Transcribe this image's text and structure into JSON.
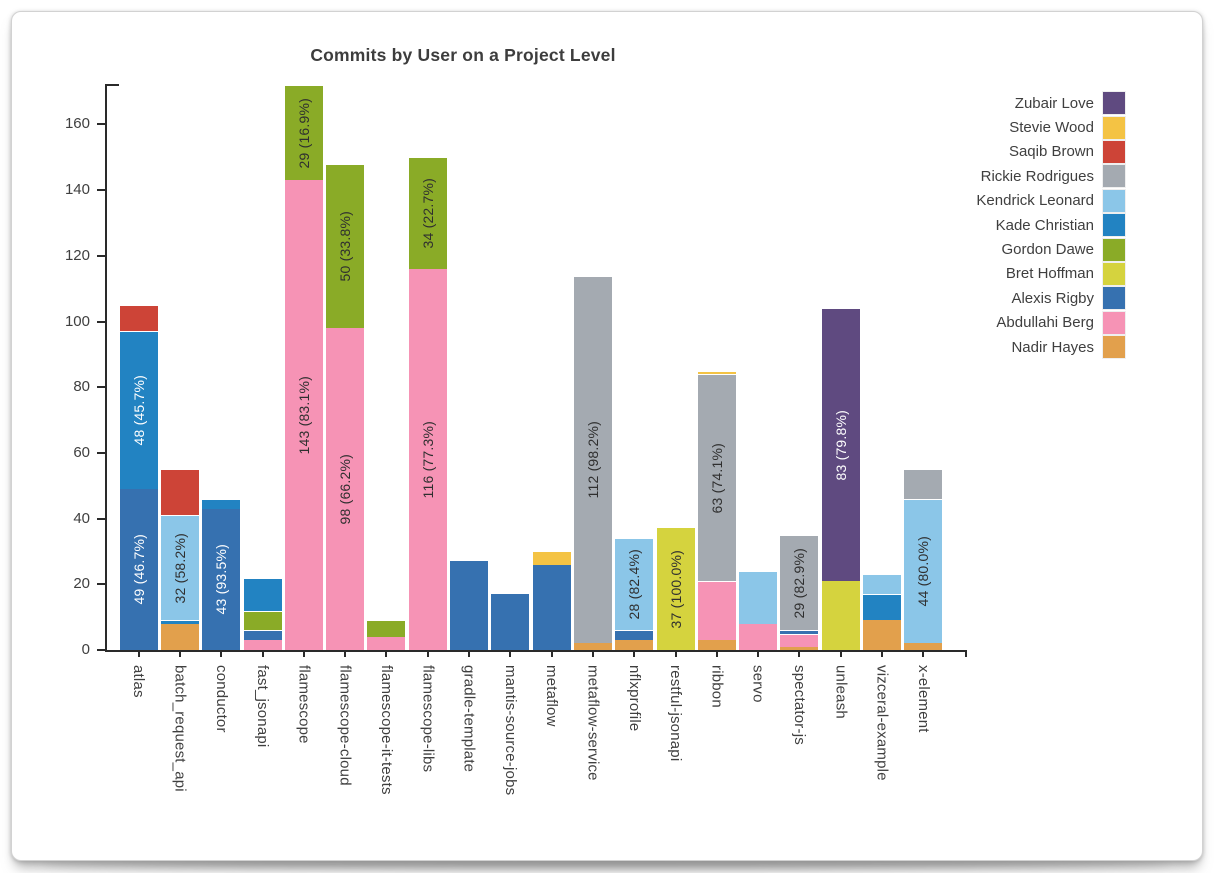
{
  "page": {
    "title": "Commits by User on a Project Level"
  },
  "chart_data": {
    "type": "bar",
    "stacked": true,
    "title": "Commits by User on a Project Level",
    "xlabel": "",
    "ylabel": "",
    "ylim": [
      0,
      172
    ],
    "yticks": [
      0,
      20,
      40,
      60,
      80,
      100,
      120,
      140,
      160
    ],
    "grid": false,
    "legend_position": "right",
    "users": [
      {
        "name": "Zubair Love",
        "color": "#5f4a80"
      },
      {
        "name": "Stevie Wood",
        "color": "#f4c344"
      },
      {
        "name": "Saqib Brown",
        "color": "#cd4437"
      },
      {
        "name": "Rickie Rodrigues",
        "color": "#a4aab1"
      },
      {
        "name": "Kendrick Leonard",
        "color": "#8bc6e8"
      },
      {
        "name": "Kade Christian",
        "color": "#2283c2"
      },
      {
        "name": "Gordon Dawe",
        "color": "#8aab27"
      },
      {
        "name": "Bret Hoffman",
        "color": "#d5d33e"
      },
      {
        "name": "Alexis Rigby",
        "color": "#3671b0"
      },
      {
        "name": "Abdullahi Berg",
        "color": "#f693b5"
      },
      {
        "name": "Nadir Hayes",
        "color": "#e2a04c"
      }
    ],
    "categories": [
      "atlas",
      "batch_request_api",
      "conductor",
      "fast_jsonapi",
      "flamescope",
      "flamescope-cloud",
      "flamescope-it-tests",
      "flamescope-libs",
      "gradle-template",
      "mantis-source-jobs",
      "metaflow",
      "metaflow-service",
      "nflxprofile",
      "restful-jsonapi",
      "ribbon",
      "servo",
      "spectator-js",
      "unleash",
      "vizceral-example",
      "x-element"
    ],
    "bars": [
      {
        "project": "atlas",
        "total": 105,
        "segments": [
          {
            "user": "Alexis Rigby",
            "value": 49,
            "label": "49 (46.7%)"
          },
          {
            "user": "Kade Christian",
            "value": 48,
            "label": "48 (45.7%)"
          },
          {
            "user": "Saqib Brown",
            "value": 8
          }
        ]
      },
      {
        "project": "batch_request_api",
        "total": 55,
        "segments": [
          {
            "user": "Nadir Hayes",
            "value": 8
          },
          {
            "user": "Kade Christian",
            "value": 1
          },
          {
            "user": "Kendrick Leonard",
            "value": 32,
            "label": "32 (58.2%)"
          },
          {
            "user": "Saqib Brown",
            "value": 14
          }
        ]
      },
      {
        "project": "conductor",
        "total": 46,
        "segments": [
          {
            "user": "Alexis Rigby",
            "value": 43,
            "label": "43 (93.5%)"
          },
          {
            "user": "Kade Christian",
            "value": 3
          }
        ]
      },
      {
        "project": "fast_jsonapi",
        "total": 22,
        "segments": [
          {
            "user": "Abdullahi Berg",
            "value": 3
          },
          {
            "user": "Alexis Rigby",
            "value": 3
          },
          {
            "user": "Gordon Dawe",
            "value": 6
          },
          {
            "user": "Kade Christian",
            "value": 10
          }
        ]
      },
      {
        "project": "flamescope",
        "total": 172,
        "segments": [
          {
            "user": "Abdullahi Berg",
            "value": 143,
            "label": "143 (83.1%)"
          },
          {
            "user": "Gordon Dawe",
            "value": 29,
            "label": "29 (16.9%)"
          }
        ]
      },
      {
        "project": "flamescope-cloud",
        "total": 148,
        "segments": [
          {
            "user": "Abdullahi Berg",
            "value": 98,
            "label": "98 (66.2%)"
          },
          {
            "user": "Gordon Dawe",
            "value": 50,
            "label": "50 (33.8%)"
          }
        ]
      },
      {
        "project": "flamescope-it-tests",
        "total": 9,
        "segments": [
          {
            "user": "Abdullahi Berg",
            "value": 4
          },
          {
            "user": "Gordon Dawe",
            "value": 5
          }
        ]
      },
      {
        "project": "flamescope-libs",
        "total": 150,
        "segments": [
          {
            "user": "Abdullahi Berg",
            "value": 116,
            "label": "116 (77.3%)"
          },
          {
            "user": "Gordon Dawe",
            "value": 34,
            "label": "34 (22.7%)"
          }
        ]
      },
      {
        "project": "gradle-template",
        "total": 27,
        "segments": [
          {
            "user": "Alexis Rigby",
            "value": 27
          }
        ]
      },
      {
        "project": "mantis-source-jobs",
        "total": 17,
        "segments": [
          {
            "user": "Alexis Rigby",
            "value": 17
          }
        ]
      },
      {
        "project": "metaflow",
        "total": 30,
        "segments": [
          {
            "user": "Alexis Rigby",
            "value": 26
          },
          {
            "user": "Stevie Wood",
            "value": 4
          }
        ]
      },
      {
        "project": "metaflow-service",
        "total": 114,
        "segments": [
          {
            "user": "Nadir Hayes",
            "value": 2
          },
          {
            "user": "Rickie Rodrigues",
            "value": 112,
            "label": "112 (98.2%)"
          }
        ]
      },
      {
        "project": "nflxprofile",
        "total": 34,
        "segments": [
          {
            "user": "Nadir Hayes",
            "value": 3
          },
          {
            "user": "Alexis Rigby",
            "value": 3
          },
          {
            "user": "Kendrick Leonard",
            "value": 28,
            "label": "28 (82.4%)"
          }
        ]
      },
      {
        "project": "restful-jsonapi",
        "total": 37,
        "segments": [
          {
            "user": "Bret Hoffman",
            "value": 37,
            "label": "37 (100.0%)"
          }
        ]
      },
      {
        "project": "ribbon",
        "total": 85,
        "segments": [
          {
            "user": "Nadir Hayes",
            "value": 3
          },
          {
            "user": "Abdullahi Berg",
            "value": 18
          },
          {
            "user": "Rickie Rodrigues",
            "value": 63,
            "label": "63 (74.1%)"
          },
          {
            "user": "Stevie Wood",
            "value": 1
          }
        ]
      },
      {
        "project": "servo",
        "total": 24,
        "segments": [
          {
            "user": "Abdullahi Berg",
            "value": 8
          },
          {
            "user": "Kendrick Leonard",
            "value": 16
          }
        ]
      },
      {
        "project": "spectator-js",
        "total": 35,
        "segments": [
          {
            "user": "Nadir Hayes",
            "value": 1
          },
          {
            "user": "Abdullahi Berg",
            "value": 4
          },
          {
            "user": "Alexis Rigby",
            "value": 1
          },
          {
            "user": "Rickie Rodrigues",
            "value": 29,
            "label": "29 (82.9%)"
          }
        ]
      },
      {
        "project": "unleash",
        "total": 104,
        "segments": [
          {
            "user": "Bret Hoffman",
            "value": 21
          },
          {
            "user": "Zubair Love",
            "value": 83,
            "label": "83 (79.8%)"
          }
        ]
      },
      {
        "project": "vizceral-example",
        "total": 23,
        "segments": [
          {
            "user": "Nadir Hayes",
            "value": 9
          },
          {
            "user": "Kade Christian",
            "value": 8
          },
          {
            "user": "Kendrick Leonard",
            "value": 6
          }
        ]
      },
      {
        "project": "x-element",
        "total": 55,
        "segments": [
          {
            "user": "Nadir Hayes",
            "value": 2
          },
          {
            "user": "Kendrick Leonard",
            "value": 44,
            "label": "44 (80.0%)"
          },
          {
            "user": "Rickie Rodrigues",
            "value": 9
          }
        ]
      }
    ]
  }
}
